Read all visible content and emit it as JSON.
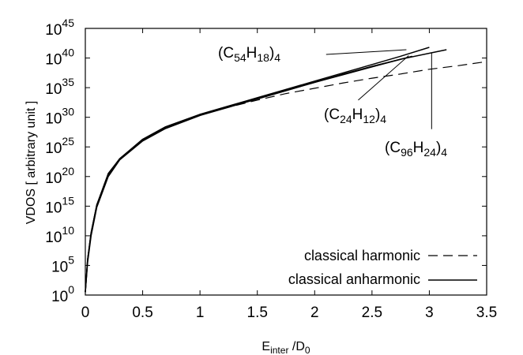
{
  "chart_data": {
    "type": "line",
    "xlabel": {
      "main": "E",
      "sub": "inter",
      "rest": " /D",
      "sub2": "0"
    },
    "ylabel": "VDOS  [ arbitrary unit ]",
    "xlim": [
      0,
      3.5
    ],
    "ylim_log10": [
      0,
      45
    ],
    "y_scale": "log",
    "grid": false,
    "legend_position": "bottom-right",
    "x_ticks": [
      "0",
      "0.5",
      "1",
      "1.5",
      "2",
      "2.5",
      "3",
      "3.5"
    ],
    "x_tick_values": [
      0,
      0.5,
      1,
      1.5,
      2,
      2.5,
      3,
      3.5
    ],
    "y_ticks": [
      {
        "base": "10",
        "exp": "0",
        "value": 0
      },
      {
        "base": "10",
        "exp": "5",
        "value": 5
      },
      {
        "base": "10",
        "exp": "10",
        "value": 10
      },
      {
        "base": "10",
        "exp": "15",
        "value": 15
      },
      {
        "base": "10",
        "exp": "20",
        "value": 20
      },
      {
        "base": "10",
        "exp": "25",
        "value": 25
      },
      {
        "base": "10",
        "exp": "30",
        "value": 30
      },
      {
        "base": "10",
        "exp": "35",
        "value": 35
      },
      {
        "base": "10",
        "exp": "40",
        "value": 40
      },
      {
        "base": "10",
        "exp": "45",
        "value": 45
      }
    ],
    "legend": [
      {
        "label": "classical harmonic",
        "style": "dashed"
      },
      {
        "label": "classical anharmonic",
        "style": "solid"
      }
    ],
    "series": [
      {
        "style": "dashed",
        "x": [
          0.0,
          0.02,
          0.05,
          0.1,
          0.2,
          0.3,
          0.5,
          0.7,
          1.0,
          1.25,
          1.5,
          1.75,
          2.0,
          2.25,
          2.5,
          2.75,
          3.0,
          3.25,
          3.5
        ],
        "y_log10": [
          0.5,
          6.0,
          10.5,
          15.2,
          20.5,
          23.0,
          26.2,
          28.2,
          30.4,
          31.7,
          32.9,
          34.0,
          34.9,
          35.8,
          36.6,
          37.3,
          38.1,
          38.7,
          39.4
        ]
      },
      {
        "style": "solid",
        "x": [
          0.0,
          0.02,
          0.05,
          0.1,
          0.2,
          0.3,
          0.5,
          0.7,
          1.0,
          1.25,
          1.5,
          1.75,
          2.0,
          2.25,
          2.5,
          2.75,
          2.85
        ],
        "y_log10": [
          0.5,
          6.0,
          10.5,
          15.2,
          20.5,
          23.0,
          26.2,
          28.2,
          30.4,
          31.8,
          33.1,
          34.5,
          35.9,
          37.2,
          38.5,
          39.8,
          40.3
        ]
      },
      {
        "style": "solid",
        "x": [
          0.0,
          0.02,
          0.05,
          0.1,
          0.2,
          0.3,
          0.5,
          0.7,
          1.0,
          1.25,
          1.5,
          1.75,
          2.0,
          2.25,
          2.5,
          2.75,
          3.0
        ],
        "y_log10": [
          0.5,
          6.0,
          10.5,
          15.2,
          20.3,
          23.0,
          26.3,
          28.4,
          30.5,
          31.9,
          33.3,
          34.7,
          36.1,
          37.5,
          38.9,
          40.3,
          41.8
        ]
      },
      {
        "style": "solid",
        "x": [
          0.0,
          0.02,
          0.05,
          0.1,
          0.2,
          0.3,
          0.5,
          0.7,
          1.0,
          1.25,
          1.5,
          1.75,
          2.0,
          2.25,
          2.5,
          2.75,
          3.0,
          3.15
        ],
        "y_log10": [
          0.5,
          5.5,
          10.0,
          14.8,
          20.0,
          22.8,
          26.0,
          28.1,
          30.3,
          31.7,
          33.1,
          34.5,
          35.9,
          37.3,
          38.6,
          39.8,
          40.8,
          41.4
        ]
      }
    ],
    "annotations": [
      {
        "pre": "(C",
        "sub1": "54",
        "mid": "H",
        "sub2": "18",
        "close": ")",
        "sub3": "4",
        "leader_from": {
          "x": 2.1,
          "y_log10": 40.6
        },
        "leader_to": {
          "x": 2.8,
          "y_log10": 41.4
        }
      },
      {
        "pre": "(C",
        "sub1": "24",
        "mid": "H",
        "sub2": "12",
        "close": ")",
        "sub3": "4",
        "leader_from": {
          "x": 2.38,
          "y_log10": 32.9
        },
        "leader_to": {
          "x": 2.82,
          "y_log10": 40.4
        }
      },
      {
        "pre": "(C",
        "sub1": "96",
        "mid": "H",
        "sub2": "24",
        "close": ")",
        "sub3": "4",
        "leader_from": {
          "x": 3.02,
          "y_log10": 28.0
        },
        "leader_to": {
          "x": 3.02,
          "y_log10": 40.8
        }
      }
    ]
  }
}
